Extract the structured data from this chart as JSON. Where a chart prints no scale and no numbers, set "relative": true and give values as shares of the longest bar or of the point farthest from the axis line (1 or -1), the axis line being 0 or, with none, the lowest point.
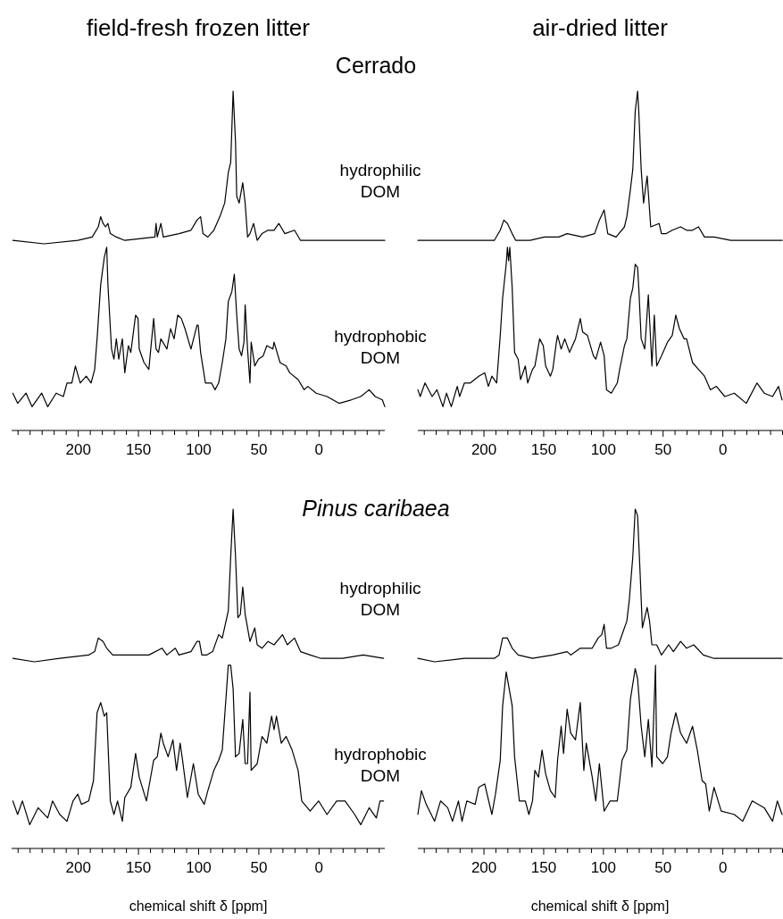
{
  "chart_data": [
    {
      "type": "line",
      "title": "field-fresh frozen litter",
      "annotations": [
        "Cerrado"
      ],
      "relative": true,
      "xlim": [
        255,
        -55
      ],
      "xticks": [
        {
          "value": 250,
          "label": null
        },
        {
          "value": 240,
          "label": null
        },
        {
          "value": 230,
          "label": null
        },
        {
          "value": 220,
          "label": null
        },
        {
          "value": 210,
          "label": null
        },
        200,
        {
          "value": 190,
          "label": null
        },
        {
          "value": 180,
          "label": null
        },
        {
          "value": 170,
          "label": null
        },
        {
          "value": 160,
          "label": null
        },
        150,
        {
          "value": 140,
          "label": null
        },
        {
          "value": 130,
          "label": null
        },
        {
          "value": 120,
          "label": null
        },
        {
          "value": 110,
          "label": null
        },
        100,
        {
          "value": 90,
          "label": null
        },
        {
          "value": 80,
          "label": null
        },
        {
          "value": 70,
          "label": null
        },
        {
          "value": 60,
          "label": null
        },
        50,
        {
          "value": 40,
          "label": null
        },
        {
          "value": 30,
          "label": null
        },
        {
          "value": 20,
          "label": null
        },
        {
          "value": 10,
          "label": null
        },
        0,
        {
          "value": -10,
          "label": null
        },
        {
          "value": -20,
          "label": null
        },
        {
          "value": -30,
          "label": null
        },
        {
          "value": -40,
          "label": null
        },
        {
          "value": -50,
          "label": null
        }
      ],
      "series": [
        {
          "name": "hydrophilic DOM",
          "color": "#000000",
          "x": [
            254,
            228,
            200,
            188,
            183,
            181,
            179,
            177,
            175,
            173,
            168,
            161,
            136,
            135,
            134,
            131,
            129,
            116,
            106,
            101,
            98,
            96,
            92,
            87,
            82,
            78,
            75,
            73,
            71,
            69,
            68,
            66,
            63,
            61,
            59,
            57,
            54,
            51,
            47,
            42,
            37,
            33,
            28,
            20,
            15,
            2,
            -7,
            -32,
            -55
          ],
          "values": [
            0.56,
            0.55,
            0.56,
            0.57,
            0.6,
            0.63,
            0.61,
            0.6,
            0.61,
            0.58,
            0.57,
            0.56,
            0.57,
            0.61,
            0.57,
            0.61,
            0.57,
            0.58,
            0.59,
            0.62,
            0.63,
            0.58,
            0.57,
            0.59,
            0.63,
            0.67,
            0.76,
            0.79,
            1.0,
            0.85,
            0.69,
            0.67,
            0.73,
            0.67,
            0.57,
            0.58,
            0.61,
            0.56,
            0.58,
            0.59,
            0.59,
            0.61,
            0.58,
            0.59,
            0.56,
            0.56,
            0.56,
            0.56,
            0.56
          ]
        },
        {
          "name": "hydrophobic DOM",
          "color": "#000000",
          "x": [
            254,
            250,
            243,
            238,
            230,
            225,
            218,
            212,
            209,
            205,
            202,
            198,
            193,
            189,
            186,
            184,
            181,
            178,
            176,
            175,
            172,
            170,
            168,
            166,
            163,
            161,
            158,
            156,
            152,
            150,
            149,
            145,
            141,
            137,
            135,
            133,
            131,
            126,
            123,
            120,
            117,
            114,
            111,
            106,
            101,
            100,
            98,
            94,
            89,
            86,
            83,
            80,
            77,
            75,
            72,
            70,
            68,
            66,
            64,
            62,
            61,
            59,
            57,
            56,
            53,
            50,
            46,
            43,
            38,
            37,
            32,
            27,
            24,
            17,
            12,
            9,
            2,
            -7,
            -17,
            -27,
            -35,
            -42,
            -47,
            -53,
            -55
          ],
          "values": [
            0.11,
            0.08,
            0.11,
            0.07,
            0.11,
            0.07,
            0.11,
            0.1,
            0.14,
            0.14,
            0.19,
            0.14,
            0.16,
            0.14,
            0.18,
            0.27,
            0.43,
            0.51,
            0.54,
            0.43,
            0.24,
            0.21,
            0.27,
            0.21,
            0.27,
            0.17,
            0.25,
            0.23,
            0.34,
            0.33,
            0.24,
            0.2,
            0.18,
            0.33,
            0.24,
            0.23,
            0.27,
            0.24,
            0.3,
            0.27,
            0.34,
            0.33,
            0.3,
            0.24,
            0.31,
            0.31,
            0.23,
            0.14,
            0.14,
            0.12,
            0.14,
            0.2,
            0.27,
            0.38,
            0.41,
            0.46,
            0.34,
            0.24,
            0.22,
            0.26,
            0.37,
            0.24,
            0.14,
            0.26,
            0.19,
            0.21,
            0.22,
            0.25,
            0.24,
            0.26,
            0.2,
            0.19,
            0.17,
            0.15,
            0.12,
            0.13,
            0.11,
            0.1,
            0.08,
            0.09,
            0.1,
            0.12,
            0.1,
            0.09,
            0.07
          ]
        }
      ]
    },
    {
      "type": "line",
      "title": "air-dried litter",
      "relative": true,
      "xlim": [
        255,
        -50
      ],
      "xticks": [
        {
          "value": 250,
          "label": null
        },
        {
          "value": 240,
          "label": null
        },
        {
          "value": 230,
          "label": null
        },
        {
          "value": 220,
          "label": null
        },
        {
          "value": 210,
          "label": null
        },
        200,
        {
          "value": 190,
          "label": null
        },
        {
          "value": 180,
          "label": null
        },
        {
          "value": 170,
          "label": null
        },
        {
          "value": 160,
          "label": null
        },
        150,
        {
          "value": 140,
          "label": null
        },
        {
          "value": 130,
          "label": null
        },
        {
          "value": 120,
          "label": null
        },
        {
          "value": 110,
          "label": null
        },
        100,
        {
          "value": 90,
          "label": null
        },
        {
          "value": 80,
          "label": null
        },
        {
          "value": 70,
          "label": null
        },
        {
          "value": 60,
          "label": null
        },
        50,
        {
          "value": 40,
          "label": null
        },
        {
          "value": 30,
          "label": null
        },
        {
          "value": 20,
          "label": null
        },
        {
          "value": 10,
          "label": null
        },
        0,
        {
          "value": -10,
          "label": null
        },
        {
          "value": -20,
          "label": null
        },
        {
          "value": -30,
          "label": null
        },
        {
          "value": -40,
          "label": null
        },
        {
          "value": -50,
          "label": null
        }
      ],
      "series": [
        {
          "color": "#000000",
          "x": [
            255,
            241,
            216,
            191,
            186,
            183,
            180,
            176,
            173,
            161,
            149,
            137,
            130,
            117,
            107,
            103,
            99,
            96,
            89,
            82,
            80,
            77,
            75,
            73,
            71,
            70,
            68,
            66,
            63,
            62,
            60,
            53,
            51,
            47,
            42,
            35,
            30,
            25,
            20,
            15,
            7,
            -7,
            -32,
            -50
          ],
          "values": [
            0.56,
            0.56,
            0.56,
            0.56,
            0.59,
            0.62,
            0.61,
            0.58,
            0.56,
            0.56,
            0.57,
            0.57,
            0.58,
            0.57,
            0.58,
            0.62,
            0.65,
            0.58,
            0.57,
            0.6,
            0.63,
            0.71,
            0.77,
            0.94,
            1.0,
            0.94,
            0.77,
            0.67,
            0.75,
            0.7,
            0.6,
            0.61,
            0.58,
            0.58,
            0.59,
            0.6,
            0.59,
            0.59,
            0.6,
            0.57,
            0.57,
            0.56,
            0.56,
            0.56
          ]
        },
        {
          "color": "#000000",
          "x": [
            255,
            253,
            249,
            243,
            239,
            234,
            231,
            227,
            222,
            220,
            216,
            211,
            204,
            199,
            196,
            193,
            189,
            186,
            184,
            181,
            180,
            179,
            178,
            176,
            174,
            171,
            169,
            165,
            163,
            159,
            157,
            153,
            150,
            148,
            144,
            142,
            139,
            138,
            135,
            132,
            128,
            123,
            119,
            117,
            113,
            108,
            106,
            102,
            99,
            97,
            93,
            88,
            86,
            82,
            80,
            77,
            75,
            73,
            71,
            70,
            68,
            65,
            62,
            59,
            57,
            55,
            51,
            46,
            42,
            39,
            36,
            32,
            30,
            25,
            20,
            15,
            10,
            5,
            -2,
            -10,
            -20,
            -29,
            -35,
            -42,
            -47,
            -50
          ],
          "values": [
            0.12,
            0.1,
            0.14,
            0.1,
            0.12,
            0.07,
            0.11,
            0.07,
            0.13,
            0.1,
            0.14,
            0.14,
            0.16,
            0.17,
            0.13,
            0.16,
            0.14,
            0.28,
            0.39,
            0.49,
            0.54,
            0.5,
            0.54,
            0.42,
            0.23,
            0.21,
            0.15,
            0.19,
            0.14,
            0.18,
            0.19,
            0.27,
            0.25,
            0.19,
            0.16,
            0.18,
            0.26,
            0.28,
            0.24,
            0.27,
            0.23,
            0.27,
            0.33,
            0.29,
            0.28,
            0.22,
            0.21,
            0.26,
            0.22,
            0.12,
            0.11,
            0.14,
            0.18,
            0.25,
            0.27,
            0.39,
            0.42,
            0.49,
            0.48,
            0.42,
            0.27,
            0.24,
            0.4,
            0.19,
            0.34,
            0.19,
            0.22,
            0.26,
            0.28,
            0.34,
            0.3,
            0.27,
            0.27,
            0.2,
            0.18,
            0.16,
            0.12,
            0.13,
            0.1,
            0.11,
            0.08,
            0.14,
            0.11,
            0.1,
            0.13,
            0.09
          ]
        }
      ]
    },
    {
      "type": "line",
      "annotations": [
        "Pinus caribaea"
      ],
      "xlabel": "chemical shift δ [ppm]",
      "relative": true,
      "xlim": [
        255,
        -55
      ],
      "xticks": [
        {
          "value": 250,
          "label": null
        },
        {
          "value": 240,
          "label": null
        },
        {
          "value": 230,
          "label": null
        },
        {
          "value": 220,
          "label": null
        },
        {
          "value": 210,
          "label": null
        },
        200,
        {
          "value": 190,
          "label": null
        },
        {
          "value": 180,
          "label": null
        },
        {
          "value": 170,
          "label": null
        },
        {
          "value": 160,
          "label": null
        },
        150,
        {
          "value": 140,
          "label": null
        },
        {
          "value": 130,
          "label": null
        },
        {
          "value": 120,
          "label": null
        },
        {
          "value": 110,
          "label": null
        },
        100,
        {
          "value": 90,
          "label": null
        },
        {
          "value": 80,
          "label": null
        },
        {
          "value": 70,
          "label": null
        },
        {
          "value": 60,
          "label": null
        },
        50,
        {
          "value": 40,
          "label": null
        },
        {
          "value": 30,
          "label": null
        },
        {
          "value": 20,
          "label": null
        },
        {
          "value": 10,
          "label": null
        },
        0,
        {
          "value": -10,
          "label": null
        },
        {
          "value": -20,
          "label": null
        },
        {
          "value": -30,
          "label": null
        },
        {
          "value": -40,
          "label": null
        },
        {
          "value": -50,
          "label": null
        }
      ],
      "series": [
        {
          "name": "hydrophilic DOM",
          "color": "#000000",
          "x": [
            254,
            236,
            215,
            191,
            186,
            183,
            179,
            176,
            171,
            161,
            141,
            130,
            126,
            119,
            116,
            106,
            101,
            99,
            97,
            93,
            88,
            83,
            80,
            75,
            73,
            71,
            69,
            67,
            65,
            63,
            61,
            57,
            53,
            51,
            47,
            42,
            37,
            30,
            26,
            20,
            15,
            7,
            -2,
            -20,
            -37,
            -54
          ],
          "values": [
            0.56,
            0.55,
            0.56,
            0.57,
            0.58,
            0.62,
            0.61,
            0.59,
            0.57,
            0.57,
            0.57,
            0.59,
            0.57,
            0.59,
            0.57,
            0.58,
            0.61,
            0.61,
            0.57,
            0.57,
            0.58,
            0.63,
            0.62,
            0.7,
            0.86,
            1.0,
            0.86,
            0.68,
            0.69,
            0.77,
            0.69,
            0.61,
            0.65,
            0.6,
            0.59,
            0.61,
            0.6,
            0.63,
            0.6,
            0.62,
            0.58,
            0.57,
            0.56,
            0.56,
            0.57,
            0.56
          ]
        },
        {
          "name": "hydrophobic DOM",
          "color": "#000000",
          "x": [
            254,
            250,
            246,
            240,
            233,
            225,
            221,
            215,
            209,
            204,
            200,
            197,
            191,
            187,
            184,
            181,
            178,
            176,
            173,
            170,
            167,
            163,
            161,
            156,
            152,
            149,
            143,
            140,
            137,
            134,
            131,
            129,
            125,
            121,
            118,
            115,
            113,
            109,
            104,
            100,
            95,
            92,
            87,
            83,
            80,
            75,
            73,
            71,
            69,
            66,
            63,
            61,
            59,
            57,
            56,
            51,
            47,
            43,
            39,
            37,
            35,
            31,
            27,
            22,
            17,
            14,
            7,
            0,
            -7,
            -15,
            -22,
            -30,
            -35,
            -42,
            -48,
            -51,
            -54
          ],
          "values": [
            0.14,
            0.1,
            0.14,
            0.07,
            0.12,
            0.09,
            0.14,
            0.1,
            0.08,
            0.14,
            0.16,
            0.13,
            0.14,
            0.2,
            0.4,
            0.43,
            0.39,
            0.4,
            0.14,
            0.1,
            0.14,
            0.08,
            0.15,
            0.18,
            0.28,
            0.21,
            0.14,
            0.2,
            0.26,
            0.27,
            0.34,
            0.31,
            0.27,
            0.32,
            0.23,
            0.31,
            0.26,
            0.15,
            0.25,
            0.16,
            0.13,
            0.17,
            0.23,
            0.26,
            0.29,
            0.54,
            0.54,
            0.47,
            0.27,
            0.28,
            0.38,
            0.25,
            0.25,
            0.46,
            0.23,
            0.25,
            0.33,
            0.31,
            0.39,
            0.35,
            0.39,
            0.31,
            0.33,
            0.29,
            0.23,
            0.14,
            0.11,
            0.14,
            0.1,
            0.14,
            0.14,
            0.1,
            0.07,
            0.12,
            0.09,
            0.14,
            0.14
          ]
        }
      ]
    },
    {
      "type": "line",
      "xlabel": "chemical shift δ [ppm]",
      "relative": true,
      "xlim": [
        255,
        -50
      ],
      "xticks": [
        {
          "value": 250,
          "label": null
        },
        {
          "value": 240,
          "label": null
        },
        {
          "value": 230,
          "label": null
        },
        {
          "value": 220,
          "label": null
        },
        {
          "value": 210,
          "label": null
        },
        200,
        {
          "value": 190,
          "label": null
        },
        {
          "value": 180,
          "label": null
        },
        {
          "value": 170,
          "label": null
        },
        {
          "value": 160,
          "label": null
        },
        150,
        {
          "value": 140,
          "label": null
        },
        {
          "value": 130,
          "label": null
        },
        {
          "value": 120,
          "label": null
        },
        {
          "value": 110,
          "label": null
        },
        100,
        {
          "value": 90,
          "label": null
        },
        {
          "value": 80,
          "label": null
        },
        {
          "value": 70,
          "label": null
        },
        {
          "value": 60,
          "label": null
        },
        50,
        {
          "value": 40,
          "label": null
        },
        {
          "value": 30,
          "label": null
        },
        {
          "value": 20,
          "label": null
        },
        {
          "value": 10,
          "label": null
        },
        0,
        {
          "value": -10,
          "label": null
        },
        {
          "value": -20,
          "label": null
        },
        {
          "value": -30,
          "label": null
        },
        {
          "value": -40,
          "label": null
        },
        {
          "value": -50,
          "label": null
        }
      ],
      "series": [
        {
          "color": "#000000",
          "x": [
            255,
            241,
            216,
            191,
            187,
            184,
            180,
            176,
            171,
            159,
            142,
            130,
            127,
            119,
            109,
            104,
            101,
            99,
            97,
            93,
            87,
            83,
            80,
            78,
            75,
            73,
            71,
            69,
            67,
            63,
            61,
            59,
            55,
            51,
            45,
            41,
            35,
            30,
            24,
            16,
            7,
            -12,
            -32,
            -50
          ],
          "values": [
            0.56,
            0.55,
            0.56,
            0.56,
            0.57,
            0.62,
            0.62,
            0.59,
            0.57,
            0.56,
            0.57,
            0.58,
            0.57,
            0.59,
            0.59,
            0.62,
            0.63,
            0.66,
            0.59,
            0.59,
            0.6,
            0.64,
            0.67,
            0.73,
            0.86,
            1.0,
            0.98,
            0.82,
            0.65,
            0.71,
            0.67,
            0.6,
            0.6,
            0.57,
            0.6,
            0.58,
            0.61,
            0.59,
            0.6,
            0.57,
            0.56,
            0.56,
            0.56,
            0.56
          ]
        },
        {
          "color": "#000000",
          "x": [
            255,
            252,
            248,
            241,
            236,
            230,
            226,
            221,
            218,
            214,
            207,
            204,
            199,
            193,
            190,
            186,
            184,
            181,
            179,
            176,
            174,
            170,
            165,
            162,
            159,
            157,
            154,
            151,
            148,
            144,
            140,
            138,
            135,
            133,
            130,
            127,
            123,
            119,
            116,
            114,
            109,
            106,
            103,
            99,
            94,
            88,
            84,
            80,
            77,
            73,
            71,
            68,
            65,
            62,
            59,
            56,
            55,
            50,
            46,
            43,
            39,
            35,
            30,
            25,
            21,
            17,
            14,
            11,
            7,
            1,
            -10,
            -17,
            -25,
            -35,
            -42,
            -46,
            -50
          ],
          "values": [
            0.1,
            0.17,
            0.13,
            0.08,
            0.14,
            0.12,
            0.08,
            0.14,
            0.08,
            0.14,
            0.13,
            0.18,
            0.19,
            0.1,
            0.16,
            0.26,
            0.42,
            0.52,
            0.48,
            0.42,
            0.27,
            0.14,
            0.14,
            0.1,
            0.14,
            0.23,
            0.21,
            0.29,
            0.22,
            0.17,
            0.15,
            0.26,
            0.36,
            0.28,
            0.41,
            0.34,
            0.32,
            0.43,
            0.23,
            0.31,
            0.21,
            0.14,
            0.25,
            0.11,
            0.14,
            0.14,
            0.26,
            0.29,
            0.44,
            0.53,
            0.5,
            0.36,
            0.27,
            0.38,
            0.24,
            0.54,
            0.27,
            0.25,
            0.27,
            0.34,
            0.4,
            0.34,
            0.31,
            0.36,
            0.29,
            0.2,
            0.19,
            0.11,
            0.18,
            0.11,
            0.1,
            0.08,
            0.14,
            0.12,
            0.08,
            0.14,
            0.1
          ]
        }
      ]
    }
  ]
}
